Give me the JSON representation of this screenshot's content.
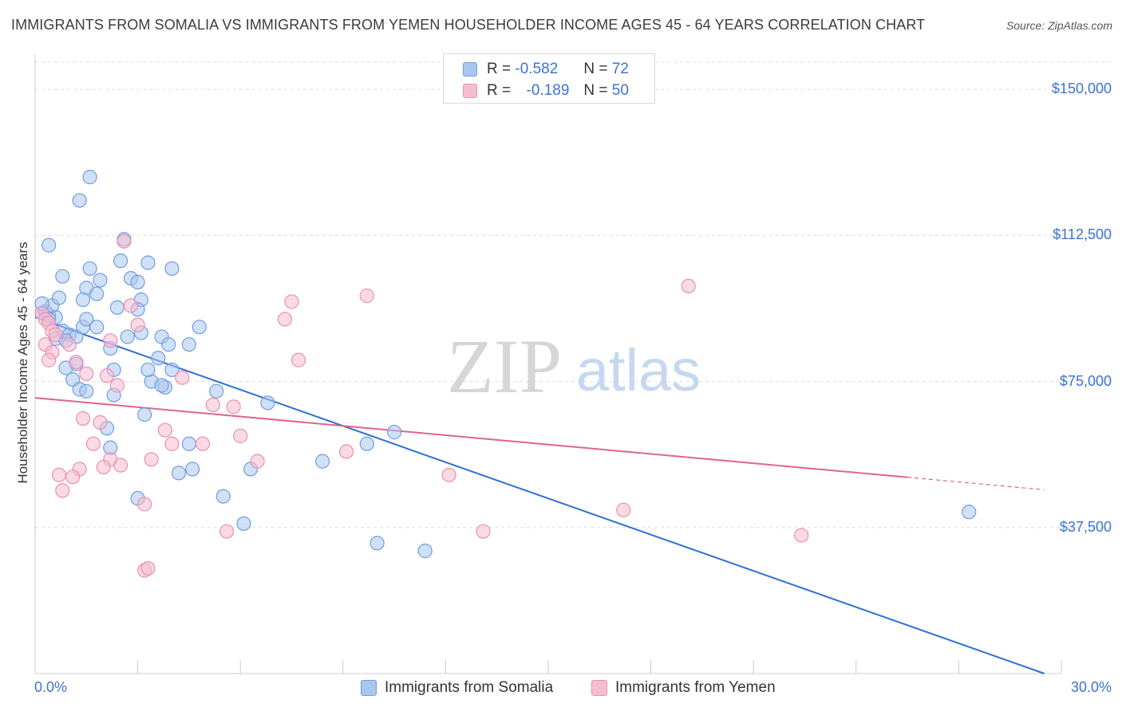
{
  "title": "IMMIGRANTS FROM SOMALIA VS IMMIGRANTS FROM YEMEN HOUSEHOLDER INCOME AGES 45 - 64 YEARS CORRELATION CHART",
  "source": "Source: ZipAtlas.com",
  "watermark": {
    "zip": "ZIP",
    "atlas": "atlas"
  },
  "legend": {
    "rows": [
      {
        "r_label": "R =",
        "r_value": "-0.582",
        "n_label": "N =",
        "n_value": "72",
        "fill": "#a9c6ef",
        "stroke": "#6f9ee0"
      },
      {
        "r_label": "R =",
        "r_value": "-0.189",
        "n_label": "N =",
        "n_value": "50",
        "fill": "#f6bcd0",
        "stroke": "#ec8fb0"
      }
    ]
  },
  "colors": {
    "somalia_fill": "#a9c6ef",
    "somalia_stroke": "#6f9ee0",
    "somalia_line": "#2f6fd6",
    "yemen_fill": "#f6bcd0",
    "yemen_stroke": "#ec8fb0",
    "yemen_line": "#e0638e",
    "tick_label": "#3b74d1",
    "grid": "#dddddd"
  },
  "chart_data": {
    "type": "scatter",
    "title": "IMMIGRANTS FROM SOMALIA VS IMMIGRANTS FROM YEMEN HOUSEHOLDER INCOME AGES 45 - 64 YEARS CORRELATION CHART",
    "xlabel": "",
    "ylabel": "Householder Income Ages 45 - 64 years",
    "xlim": [
      0,
      30
    ],
    "ylim": [
      0,
      157000
    ],
    "x_tick_labels": [
      "0.0%",
      "30.0%"
    ],
    "y_ticks": [
      37500,
      75000,
      112500,
      150000
    ],
    "y_tick_labels": [
      "$37,500",
      "$75,000",
      "$112,500",
      "$150,000"
    ],
    "grid": true,
    "series": [
      {
        "name": "Immigrants from Somalia",
        "r": -0.582,
        "n": 72,
        "trend": {
          "x0": 0,
          "y0": 91500,
          "x1": 29.5,
          "y1": 0,
          "solid_to": 29.5
        },
        "points": [
          [
            0.2,
            92500
          ],
          [
            0.4,
            92000
          ],
          [
            0.6,
            91500
          ],
          [
            0.3,
            93000
          ],
          [
            0.5,
            94500
          ],
          [
            0.2,
            95000
          ],
          [
            0.7,
            96500
          ],
          [
            0.4,
            91000
          ],
          [
            0.8,
            88000
          ],
          [
            1.0,
            87000
          ],
          [
            0.6,
            86000
          ],
          [
            1.2,
            86500
          ],
          [
            0.9,
            85500
          ],
          [
            1.4,
            89000
          ],
          [
            1.5,
            91000
          ],
          [
            1.8,
            89000
          ],
          [
            0.4,
            110000
          ],
          [
            0.8,
            102000
          ],
          [
            1.6,
            104000
          ],
          [
            1.9,
            101000
          ],
          [
            1.5,
            99000
          ],
          [
            1.8,
            97500
          ],
          [
            1.4,
            96000
          ],
          [
            2.4,
            94000
          ],
          [
            2.5,
            106000
          ],
          [
            2.6,
            111500
          ],
          [
            2.8,
            101500
          ],
          [
            3.0,
            100500
          ],
          [
            3.1,
            96000
          ],
          [
            3.0,
            93500
          ],
          [
            2.7,
            86500
          ],
          [
            3.1,
            87500
          ],
          [
            3.7,
            86500
          ],
          [
            3.9,
            84500
          ],
          [
            3.6,
            81000
          ],
          [
            3.4,
            75000
          ],
          [
            3.8,
            73500
          ],
          [
            4.0,
            78000
          ],
          [
            4.5,
            84500
          ],
          [
            4.8,
            89000
          ],
          [
            2.2,
            83500
          ],
          [
            2.3,
            78000
          ],
          [
            1.2,
            79500
          ],
          [
            0.9,
            78500
          ],
          [
            1.1,
            75500
          ],
          [
            1.3,
            73000
          ],
          [
            1.5,
            72500
          ],
          [
            2.3,
            71500
          ],
          [
            3.3,
            78000
          ],
          [
            3.2,
            66500
          ],
          [
            3.7,
            74000
          ],
          [
            2.1,
            63000
          ],
          [
            2.2,
            58000
          ],
          [
            4.5,
            59000
          ],
          [
            4.6,
            52500
          ],
          [
            4.2,
            51500
          ],
          [
            5.3,
            72500
          ],
          [
            6.3,
            52500
          ],
          [
            5.5,
            45500
          ],
          [
            6.1,
            38500
          ],
          [
            6.8,
            69500
          ],
          [
            10.0,
            33500
          ],
          [
            8.4,
            54500
          ],
          [
            9.7,
            59000
          ],
          [
            10.5,
            62000
          ],
          [
            11.4,
            31500
          ],
          [
            27.3,
            41500
          ],
          [
            1.6,
            127500
          ],
          [
            1.3,
            121500
          ],
          [
            3.3,
            105500
          ],
          [
            4.0,
            104000
          ],
          [
            3.0,
            45000
          ]
        ]
      },
      {
        "name": "Immigrants from Yemen",
        "r": -0.189,
        "n": 50,
        "trend": {
          "x0": 0,
          "y0": 70800,
          "x1": 29.5,
          "y1": 47200,
          "solid_to": 25.5
        },
        "points": [
          [
            0.2,
            92500
          ],
          [
            0.3,
            91000
          ],
          [
            0.4,
            90000
          ],
          [
            0.5,
            88000
          ],
          [
            0.6,
            87000
          ],
          [
            0.3,
            84500
          ],
          [
            0.5,
            82500
          ],
          [
            0.4,
            80500
          ],
          [
            1.0,
            84500
          ],
          [
            1.2,
            80000
          ],
          [
            1.5,
            77000
          ],
          [
            2.2,
            85500
          ],
          [
            2.1,
            76500
          ],
          [
            2.4,
            74000
          ],
          [
            3.0,
            89500
          ],
          [
            2.8,
            94500
          ],
          [
            4.3,
            76000
          ],
          [
            3.8,
            62500
          ],
          [
            5.2,
            69000
          ],
          [
            6.0,
            61000
          ],
          [
            5.8,
            68500
          ],
          [
            7.3,
            91000
          ],
          [
            7.5,
            95500
          ],
          [
            7.7,
            80500
          ],
          [
            9.1,
            57000
          ],
          [
            9.7,
            97000
          ],
          [
            12.1,
            51000
          ],
          [
            13.1,
            36500
          ],
          [
            17.2,
            42000
          ],
          [
            19.1,
            99500
          ],
          [
            22.4,
            35500
          ],
          [
            2.6,
            111000
          ],
          [
            1.4,
            65500
          ],
          [
            1.7,
            59000
          ],
          [
            1.9,
            64500
          ],
          [
            2.2,
            55000
          ],
          [
            1.3,
            52500
          ],
          [
            0.8,
            47000
          ],
          [
            0.7,
            51000
          ],
          [
            1.1,
            50500
          ],
          [
            2.0,
            53000
          ],
          [
            2.5,
            53500
          ],
          [
            3.4,
            55000
          ],
          [
            4.0,
            59000
          ],
          [
            4.9,
            59000
          ],
          [
            5.6,
            36500
          ],
          [
            6.5,
            54500
          ],
          [
            3.2,
            43500
          ],
          [
            3.2,
            26500
          ],
          [
            3.3,
            27000
          ]
        ]
      }
    ]
  }
}
